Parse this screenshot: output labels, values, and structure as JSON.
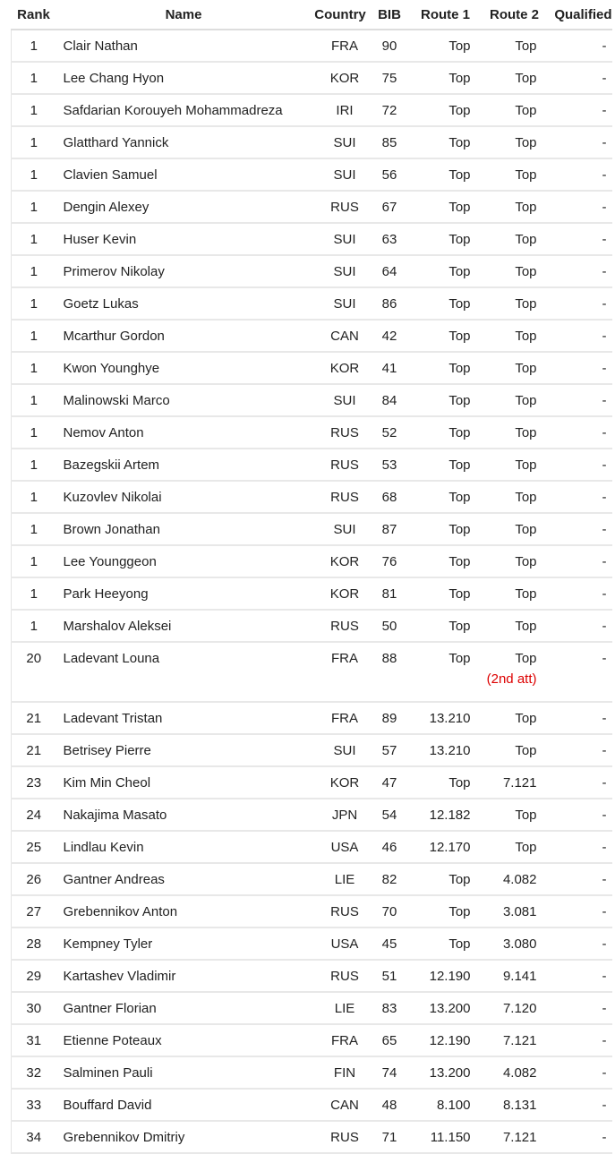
{
  "table": {
    "header": [
      "Rank",
      "Name",
      "Country",
      "BIB",
      "Route 1",
      "Route 2",
      "Qualified"
    ],
    "rows": [
      {
        "rank": "1",
        "name": "Clair Nathan",
        "country": "FRA",
        "bib": "90",
        "route1": "Top",
        "route2": "Top",
        "qualified": "-"
      },
      {
        "rank": "1",
        "name": "Lee Chang Hyon",
        "country": "KOR",
        "bib": "75",
        "route1": "Top",
        "route2": "Top",
        "qualified": "-"
      },
      {
        "rank": "1",
        "name": "Safdarian Korouyeh Mohammadreza",
        "country": "IRI",
        "bib": "72",
        "route1": "Top",
        "route2": "Top",
        "qualified": "-"
      },
      {
        "rank": "1",
        "name": "Glatthard Yannick",
        "country": "SUI",
        "bib": "85",
        "route1": "Top",
        "route2": "Top",
        "qualified": "-"
      },
      {
        "rank": "1",
        "name": "Clavien Samuel",
        "country": "SUI",
        "bib": "56",
        "route1": "Top",
        "route2": "Top",
        "qualified": "-"
      },
      {
        "rank": "1",
        "name": "Dengin Alexey",
        "country": "RUS",
        "bib": "67",
        "route1": "Top",
        "route2": "Top",
        "qualified": "-"
      },
      {
        "rank": "1",
        "name": "Huser Kevin",
        "country": "SUI",
        "bib": "63",
        "route1": "Top",
        "route2": "Top",
        "qualified": "-"
      },
      {
        "rank": "1",
        "name": "Primerov Nikolay",
        "country": "SUI",
        "bib": "64",
        "route1": "Top",
        "route2": "Top",
        "qualified": "-"
      },
      {
        "rank": "1",
        "name": "Goetz Lukas",
        "country": "SUI",
        "bib": "86",
        "route1": "Top",
        "route2": "Top",
        "qualified": "-"
      },
      {
        "rank": "1",
        "name": "Mcarthur Gordon",
        "country": "CAN",
        "bib": "42",
        "route1": "Top",
        "route2": "Top",
        "qualified": "-"
      },
      {
        "rank": "1",
        "name": "Kwon Younghye",
        "country": "KOR",
        "bib": "41",
        "route1": "Top",
        "route2": "Top",
        "qualified": "-"
      },
      {
        "rank": "1",
        "name": "Malinowski Marco",
        "country": "SUI",
        "bib": "84",
        "route1": "Top",
        "route2": "Top",
        "qualified": "-"
      },
      {
        "rank": "1",
        "name": "Nemov Anton",
        "country": "RUS",
        "bib": "52",
        "route1": "Top",
        "route2": "Top",
        "qualified": "-"
      },
      {
        "rank": "1",
        "name": "Bazegskii Artem",
        "country": "RUS",
        "bib": "53",
        "route1": "Top",
        "route2": "Top",
        "qualified": "-"
      },
      {
        "rank": "1",
        "name": "Kuzovlev Nikolai",
        "country": "RUS",
        "bib": "68",
        "route1": "Top",
        "route2": "Top",
        "qualified": "-"
      },
      {
        "rank": "1",
        "name": "Brown Jonathan",
        "country": "SUI",
        "bib": "87",
        "route1": "Top",
        "route2": "Top",
        "qualified": "-"
      },
      {
        "rank": "1",
        "name": "Lee Younggeon",
        "country": "KOR",
        "bib": "76",
        "route1": "Top",
        "route2": "Top",
        "qualified": "-"
      },
      {
        "rank": "1",
        "name": "Park Heeyong",
        "country": "KOR",
        "bib": "81",
        "route1": "Top",
        "route2": "Top",
        "qualified": "-"
      },
      {
        "rank": "1",
        "name": "Marshalov Aleksei",
        "country": "RUS",
        "bib": "50",
        "route1": "Top",
        "route2": "Top",
        "qualified": "-"
      },
      {
        "rank": "20",
        "name": "Ladevant Louna",
        "country": "FRA",
        "bib": "88",
        "route1": "Top",
        "route2": "Top",
        "note": "(2nd att)",
        "qualified": "-"
      },
      {
        "rank": "21",
        "name": "Ladevant Tristan",
        "country": "FRA",
        "bib": "89",
        "route1": "13.210",
        "route2": "Top",
        "qualified": "-"
      },
      {
        "rank": "21",
        "name": "Betrisey Pierre",
        "country": "SUI",
        "bib": "57",
        "route1": "13.210",
        "route2": "Top",
        "qualified": "-"
      },
      {
        "rank": "23",
        "name": "Kim Min Cheol",
        "country": "KOR",
        "bib": "47",
        "route1": "Top",
        "route2": "7.121",
        "qualified": "-"
      },
      {
        "rank": "24",
        "name": "Nakajima Masato",
        "country": "JPN",
        "bib": "54",
        "route1": "12.182",
        "route2": "Top",
        "qualified": "-"
      },
      {
        "rank": "25",
        "name": "Lindlau Kevin",
        "country": "USA",
        "bib": "46",
        "route1": "12.170",
        "route2": "Top",
        "qualified": "-"
      },
      {
        "rank": "26",
        "name": "Gantner Andreas",
        "country": "LIE",
        "bib": "82",
        "route1": "Top",
        "route2": "4.082",
        "qualified": "-"
      },
      {
        "rank": "27",
        "name": "Grebennikov Anton",
        "country": "RUS",
        "bib": "70",
        "route1": "Top",
        "route2": "3.081",
        "qualified": "-"
      },
      {
        "rank": "28",
        "name": "Kempney Tyler",
        "country": "USA",
        "bib": "45",
        "route1": "Top",
        "route2": "3.080",
        "qualified": "-"
      },
      {
        "rank": "29",
        "name": "Kartashev Vladimir",
        "country": "RUS",
        "bib": "51",
        "route1": "12.190",
        "route2": "9.141",
        "qualified": "-"
      },
      {
        "rank": "30",
        "name": "Gantner Florian",
        "country": "LIE",
        "bib": "83",
        "route1": "13.200",
        "route2": "7.120",
        "qualified": "-"
      },
      {
        "rank": "31",
        "name": "Etienne Poteaux",
        "country": "FRA",
        "bib": "65",
        "route1": "12.190",
        "route2": "7.121",
        "qualified": "-"
      },
      {
        "rank": "32",
        "name": "Salminen Pauli",
        "country": "FIN",
        "bib": "74",
        "route1": "13.200",
        "route2": "4.082",
        "qualified": "-"
      },
      {
        "rank": "33",
        "name": "Bouffard David",
        "country": "CAN",
        "bib": "48",
        "route1": "8.100",
        "route2": "8.131",
        "qualified": "-"
      },
      {
        "rank": "34",
        "name": "Grebennikov Dmitriy",
        "country": "RUS",
        "bib": "71",
        "route1": "11.150",
        "route2": "7.121",
        "qualified": "-"
      }
    ]
  }
}
